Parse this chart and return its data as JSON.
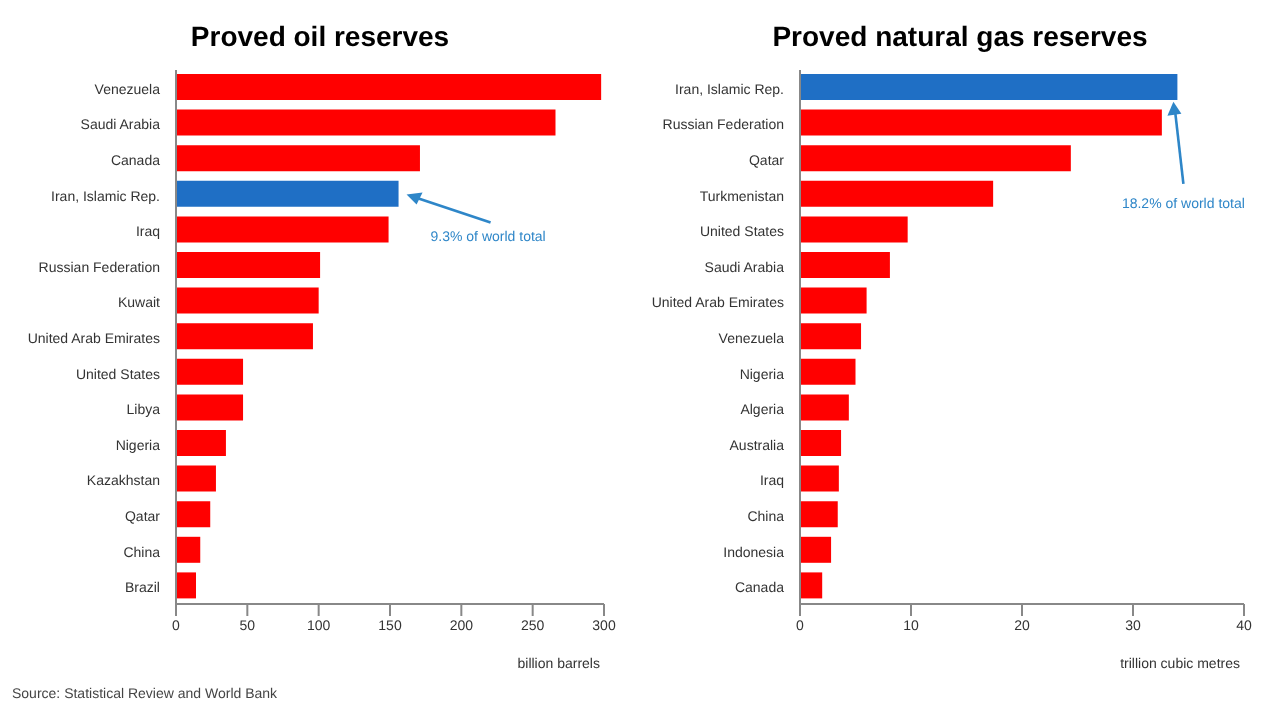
{
  "chart_data": [
    {
      "type": "bar",
      "orientation": "horizontal",
      "title": "Proved oil reserves",
      "xlabel": "billion barrels",
      "categories": [
        "Venezuela",
        "Saudi Arabia",
        "Canada",
        "Iran, Islamic Rep.",
        "Iraq",
        "Russian Federation",
        "Kuwait",
        "United Arab Emirates",
        "United States",
        "Libya",
        "Nigeria",
        "Kazakhstan",
        "Qatar",
        "China",
        "Brazil"
      ],
      "values": [
        298,
        266,
        171,
        156,
        149,
        101,
        100,
        96,
        47,
        47,
        35,
        28,
        24,
        17,
        14
      ],
      "colors": [
        "#ff0000",
        "#ff0000",
        "#ff0000",
        "#1f6fc5",
        "#ff0000",
        "#ff0000",
        "#ff0000",
        "#ff0000",
        "#ff0000",
        "#ff0000",
        "#ff0000",
        "#ff0000",
        "#ff0000",
        "#ff0000",
        "#ff0000"
      ],
      "xlim": [
        0,
        300
      ],
      "xticks": [
        0,
        50,
        100,
        150,
        200,
        250,
        300
      ],
      "annotations": [
        {
          "text": "9.3% of world total",
          "x": 156,
          "y": "Iran, Islamic Rep."
        },
        "Source: Statistical Review and World Bank"
      ]
    },
    {
      "type": "bar",
      "orientation": "horizontal",
      "title": "Proved natural gas reserves",
      "xlabel": "trillion cubic metres",
      "categories": [
        "Iran, Islamic Rep.",
        "Russian Federation",
        "Qatar",
        "Turkmenistan",
        "United States",
        "Saudi Arabia",
        "United Arab Emirates",
        "Venezuela",
        "Nigeria",
        "Algeria",
        "Australia",
        "Iraq",
        "China",
        "Indonesia",
        "Canada"
      ],
      "values": [
        34,
        32.6,
        24.4,
        17.4,
        9.7,
        8.1,
        6.0,
        5.5,
        5.0,
        4.4,
        3.7,
        3.5,
        3.4,
        2.8,
        2.0
      ],
      "colors": [
        "#1f6fc5",
        "#ff0000",
        "#ff0000",
        "#ff0000",
        "#ff0000",
        "#ff0000",
        "#ff0000",
        "#ff0000",
        "#ff0000",
        "#ff0000",
        "#ff0000",
        "#ff0000",
        "#ff0000",
        "#ff0000",
        "#ff0000"
      ],
      "xlim": [
        0,
        40
      ],
      "xticks": [
        0,
        10,
        20,
        30,
        40
      ],
      "annotations": [
        {
          "text": "18.2% of world total",
          "x": 34,
          "y": "Iran, Islamic Rep."
        }
      ]
    }
  ]
}
